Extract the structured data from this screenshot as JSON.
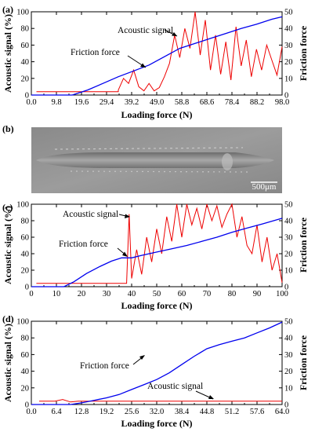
{
  "panels": [
    {
      "label": "(a)",
      "xlabel": "Loading force (N)",
      "ylabel_left": "Acoustic signal (%)",
      "ylabel_right": "Friction force",
      "xticks": [
        "0.0",
        "9.8",
        "19.6",
        "29.4",
        "39.2",
        "49.0",
        "58.8",
        "68.6",
        "78.4",
        "88.2",
        "98.0"
      ],
      "yticks_left": [
        "0",
        "20",
        "40",
        "60",
        "80",
        "100"
      ],
      "yticks_right": [
        "0",
        "10",
        "20",
        "30",
        "40",
        "50"
      ],
      "annotations": {
        "acoustic": "Acoustic signal",
        "friction": "Friction force"
      }
    },
    {
      "label": "(b)",
      "scale_bar": "500μm"
    },
    {
      "label": "(c)",
      "xlabel": "Loading force (N)",
      "ylabel_left": "Acoustic signal (%)",
      "ylabel_right": "Friction force",
      "xticks": [
        "0",
        "10",
        "20",
        "30",
        "40",
        "50",
        "60",
        "70",
        "80",
        "90",
        "100"
      ],
      "yticks_left": [
        "0",
        "20",
        "40",
        "60",
        "80",
        "100"
      ],
      "yticks_right": [
        "0",
        "10",
        "20",
        "30",
        "40",
        "50"
      ],
      "annotations": {
        "acoustic": "Acoustic signal",
        "friction": "Friction force"
      }
    },
    {
      "label": "(d)",
      "xlabel": "Loading force (N)",
      "ylabel_left": "Acoustic signal (%)",
      "ylabel_right": "Friction force",
      "xticks": [
        "0.0",
        "6.4",
        "12.8",
        "19.2",
        "25.6",
        "32.0",
        "38.4",
        "44.8",
        "51.2",
        "57.6",
        "64.0"
      ],
      "yticks_left": [
        "0",
        "20",
        "40",
        "60",
        "80",
        "100"
      ],
      "yticks_right": [
        "0",
        "10",
        "20",
        "30",
        "40",
        "50"
      ],
      "annotations": {
        "acoustic": "Acoustic signal",
        "friction": "Friction force"
      }
    }
  ],
  "chart_data": [
    {
      "type": "line",
      "panel": "(a)",
      "xlim": [
        0,
        98
      ],
      "ylim_left": [
        0,
        100
      ],
      "ylim_right": [
        0,
        50
      ],
      "colors": {
        "friction": "#0000ee",
        "acoustic": "#ee0000"
      },
      "friction_force": {
        "axis": "right",
        "x": [
          0,
          16,
          22,
          28,
          34,
          40,
          46,
          52,
          58,
          64,
          70,
          76,
          82,
          88,
          94,
          98
        ],
        "y": [
          0,
          0,
          3,
          7,
          11,
          14.5,
          18,
          23,
          28,
          31,
          34,
          37,
          40,
          42.5,
          45.5,
          47
        ]
      },
      "acoustic_signal": {
        "axis": "left",
        "baseline_x": [
          2,
          34
        ],
        "baseline_y": 4,
        "x": [
          34,
          36,
          38,
          40,
          42,
          44,
          46,
          48,
          50,
          52,
          54,
          56,
          58,
          60,
          62,
          64,
          66,
          68,
          70,
          72,
          74,
          76,
          78,
          80,
          82,
          84,
          86,
          88,
          90,
          92,
          94,
          96,
          98
        ],
        "y": [
          6,
          20,
          14,
          30,
          10,
          5,
          14,
          5,
          9,
          22,
          38,
          72,
          45,
          80,
          56,
          100,
          48,
          90,
          30,
          72,
          25,
          64,
          18,
          82,
          35,
          66,
          22,
          55,
          30,
          60,
          42,
          24,
          58
        ]
      }
    },
    {
      "type": "line",
      "panel": "(c)",
      "xlim": [
        0,
        100
      ],
      "ylim_left": [
        0,
        100
      ],
      "ylim_right": [
        0,
        50
      ],
      "colors": {
        "friction": "#0000ee",
        "acoustic": "#ee0000"
      },
      "friction_force": {
        "axis": "right",
        "x": [
          0,
          13,
          17,
          22,
          27,
          32,
          36,
          40,
          44,
          50,
          56,
          62,
          68,
          74,
          80,
          86,
          92,
          100
        ],
        "y": [
          0,
          0,
          3,
          8,
          12,
          15.5,
          17.5,
          17.5,
          19,
          21,
          23,
          25,
          27.5,
          30,
          33,
          35.5,
          38,
          41.5
        ]
      },
      "acoustic_signal": {
        "axis": "left",
        "baseline_x": [
          2,
          38
        ],
        "baseline_y": 4,
        "x": [
          38,
          39,
          40,
          42,
          44,
          46,
          48,
          50,
          52,
          54,
          56,
          58,
          60,
          62,
          64,
          66,
          68,
          70,
          72,
          74,
          76,
          78,
          80,
          82,
          84,
          86,
          88,
          90,
          92,
          94,
          96,
          98,
          100
        ],
        "y": [
          5,
          88,
          10,
          45,
          15,
          60,
          30,
          70,
          40,
          85,
          55,
          100,
          60,
          100,
          75,
          95,
          70,
          100,
          80,
          98,
          72,
          88,
          100,
          60,
          85,
          50,
          40,
          75,
          30,
          60,
          20,
          40,
          5
        ]
      }
    },
    {
      "type": "line",
      "panel": "(d)",
      "xlim": [
        0,
        64
      ],
      "ylim_left": [
        0,
        100
      ],
      "ylim_right": [
        0,
        50
      ],
      "colors": {
        "friction": "#0000ee",
        "acoustic": "#ee0000"
      },
      "friction_force": {
        "axis": "right",
        "x": [
          0,
          10,
          12.8,
          16,
          19.2,
          22.4,
          25.6,
          28.8,
          32,
          35.2,
          38.4,
          41.6,
          44.8,
          48,
          51.2,
          54.4,
          57.6,
          60.8,
          64
        ],
        "y": [
          0,
          0,
          1,
          2.5,
          4,
          6,
          9,
          12,
          15,
          19,
          24,
          29,
          33.5,
          36,
          38,
          40,
          43,
          46,
          49.5
        ]
      },
      "acoustic_signal": {
        "axis": "left",
        "x": [
          2,
          6,
          8,
          10,
          12,
          20,
          30,
          40,
          50,
          60,
          64
        ],
        "y": [
          4,
          4,
          6,
          3,
          4,
          4,
          4,
          4,
          4,
          4,
          4
        ]
      }
    }
  ]
}
